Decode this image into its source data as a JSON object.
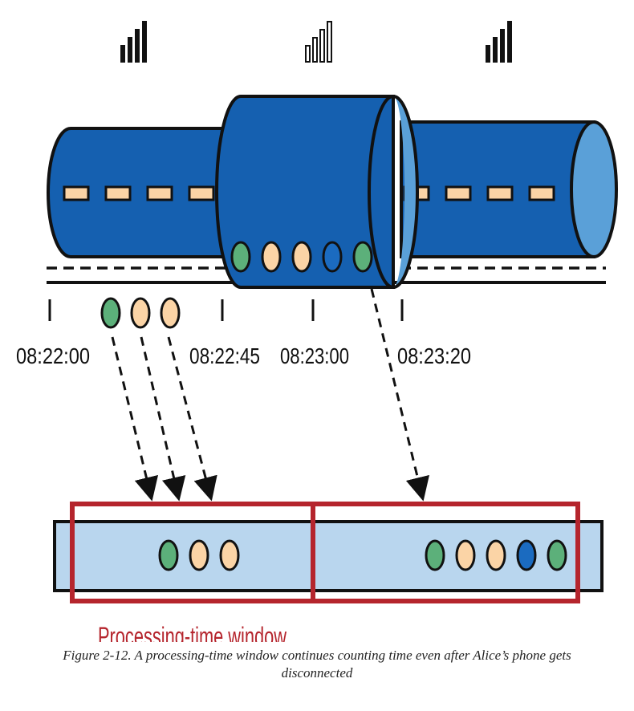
{
  "colors": {
    "pipe": "#1560b0",
    "pipe_light": "#5aa0d8",
    "window_bg": "#b9d6ee",
    "window_border": "#b5252d",
    "green": "#5cb07a",
    "peach": "#fbd4a6",
    "blue": "#1b6bc0"
  },
  "icons": {
    "left": "signal-full-icon",
    "middle": "signal-empty-icon",
    "right": "signal-full-icon"
  },
  "timeline": {
    "ticks": [
      "08:22:00",
      "08:22:45",
      "08:23:00",
      "08:23:20"
    ]
  },
  "events": {
    "buffered": [
      "green",
      "peach",
      "peach",
      "blue",
      "green"
    ],
    "delivered": [
      "green",
      "peach",
      "peach"
    ]
  },
  "windows": {
    "label": "Processing-time window",
    "first": [
      "green",
      "peach",
      "peach"
    ],
    "second": [
      "green",
      "peach",
      "peach",
      "blue",
      "green"
    ]
  },
  "caption": {
    "line1": "Figure 2-12. A processing-time window continues counting time even after Alice’s phone gets",
    "line2": "disconnected"
  }
}
